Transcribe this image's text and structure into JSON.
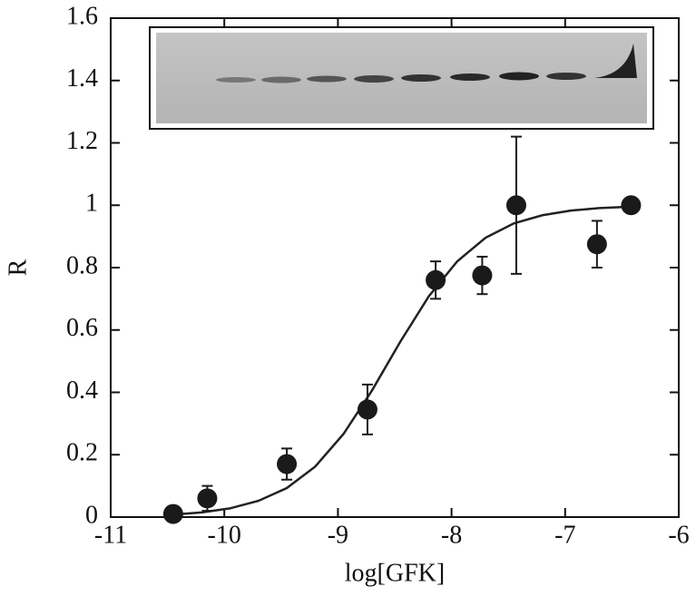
{
  "chart_data": {
    "type": "scatter",
    "xlabel": "log[GFK]",
    "ylabel": "R",
    "x": [
      -10.45,
      -10.15,
      -9.45,
      -8.74,
      -8.14,
      -7.73,
      -7.43,
      -6.72,
      -6.42
    ],
    "series": [
      {
        "color": "#1a1a1a",
        "values": [
          0.01,
          0.06,
          0.17,
          0.345,
          0.76,
          0.775,
          1.0,
          0.875,
          1.0
        ],
        "errors": [
          null,
          0.04,
          0.05,
          0.08,
          0.06,
          0.06,
          0.22,
          0.075,
          null
        ]
      }
    ],
    "fit": {
      "x": [
        -10.45,
        -10.2,
        -9.95,
        -9.7,
        -9.45,
        -9.2,
        -8.95,
        -8.7,
        -8.45,
        -8.2,
        -7.95,
        -7.7,
        -7.45,
        -7.2,
        -6.95,
        -6.7,
        -6.45
      ],
      "values": [
        0.008,
        0.015,
        0.028,
        0.052,
        0.093,
        0.162,
        0.267,
        0.406,
        0.563,
        0.708,
        0.82,
        0.896,
        0.942,
        0.968,
        0.983,
        0.991,
        0.995
      ]
    },
    "xlim": [
      -11,
      -6
    ],
    "ylim": [
      0,
      1.6
    ],
    "xticks": [
      -11,
      -10,
      -9,
      -8,
      -7,
      -6
    ],
    "yticks": [
      0,
      0.2,
      0.4,
      0.6,
      0.8,
      1,
      1.2,
      1.4,
      1.6
    ]
  }
}
